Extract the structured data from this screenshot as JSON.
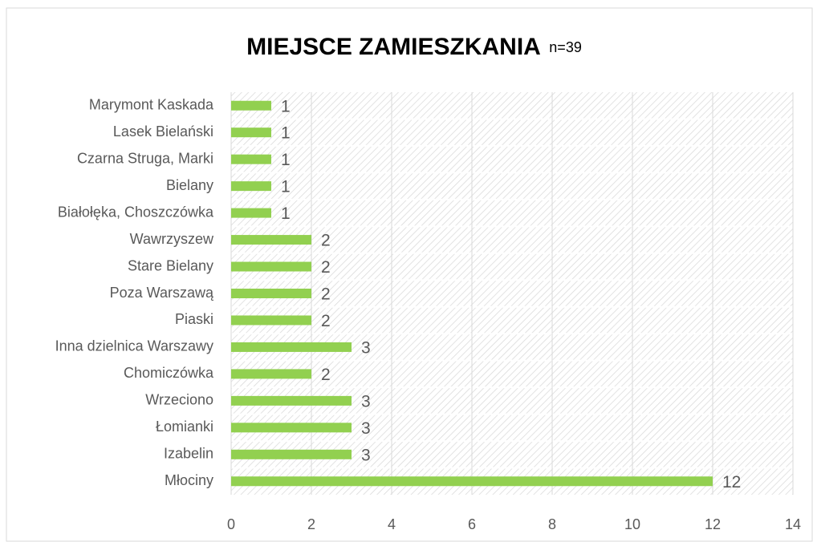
{
  "chart_data": {
    "type": "bar",
    "orientation": "horizontal",
    "title": "MIEJSCE ZAMIESZKANIA",
    "subtitle": "n=39",
    "categories": [
      "Marymont Kaskada",
      "Lasek Bielański",
      "Czarna Struga, Marki",
      "Bielany",
      "Białołęka, Choszczówka",
      "Wawrzyszew",
      "Stare Bielany",
      "Poza Warszawą",
      "Piaski",
      "Inna dzielnica Warszawy",
      "Chomiczówka",
      "Wrzeciono",
      "Łomianki",
      "Izabelin",
      "Młociny"
    ],
    "values": [
      1,
      1,
      1,
      1,
      1,
      2,
      2,
      2,
      2,
      3,
      2,
      3,
      3,
      3,
      12
    ],
    "color": "#92d050",
    "xlim": [
      0,
      14
    ],
    "xticks": [
      0,
      2,
      4,
      6,
      8,
      10,
      12,
      14
    ],
    "grid": true
  }
}
